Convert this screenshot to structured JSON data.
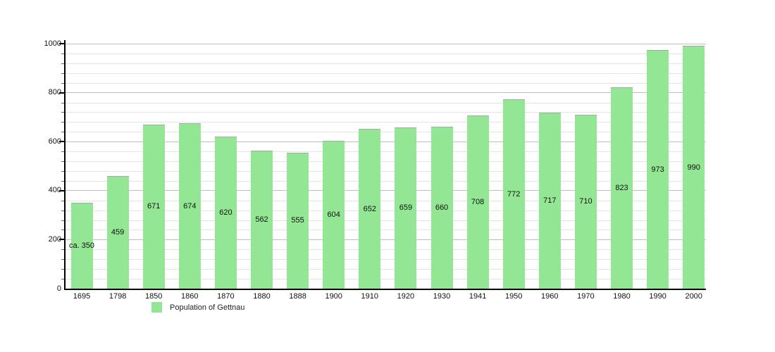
{
  "chart_data": {
    "type": "bar",
    "title": "",
    "xlabel": "",
    "ylabel": "",
    "categories": [
      "1695",
      "1798",
      "1850",
      "1860",
      "1870",
      "1880",
      "1888",
      "1900",
      "1910",
      "1920",
      "1930",
      "1941",
      "1950",
      "1960",
      "1970",
      "1980",
      "1990",
      "2000"
    ],
    "values": [
      350,
      459,
      671,
      674,
      620,
      562,
      555,
      604,
      652,
      659,
      660,
      708,
      772,
      717,
      710,
      823,
      973,
      990
    ],
    "value_labels": [
      "ca. 350",
      "459",
      "671",
      "674",
      "620",
      "562",
      "555",
      "604",
      "652",
      "659",
      "660",
      "708",
      "772",
      "717",
      "710",
      "823",
      "973",
      "990"
    ],
    "ylim": [
      0,
      1000
    ],
    "y_major_step": 200,
    "y_minor_step": 40,
    "y_tick_labels": [
      "0",
      "200",
      "400",
      "600",
      "800",
      "1000"
    ],
    "grid": "horizontal",
    "legend_position": "bottom-left",
    "legend": [
      {
        "label": "Population of Gettnau",
        "color": "#93e693"
      }
    ],
    "colors": {
      "bar": "#93e693",
      "bar_top_edge": "#a9a9a9",
      "grid_major": "#bfbfbf",
      "grid_minor": "#e4e4e4",
      "axis": "#000000",
      "text": "#111111",
      "background": "#ffffff"
    }
  }
}
